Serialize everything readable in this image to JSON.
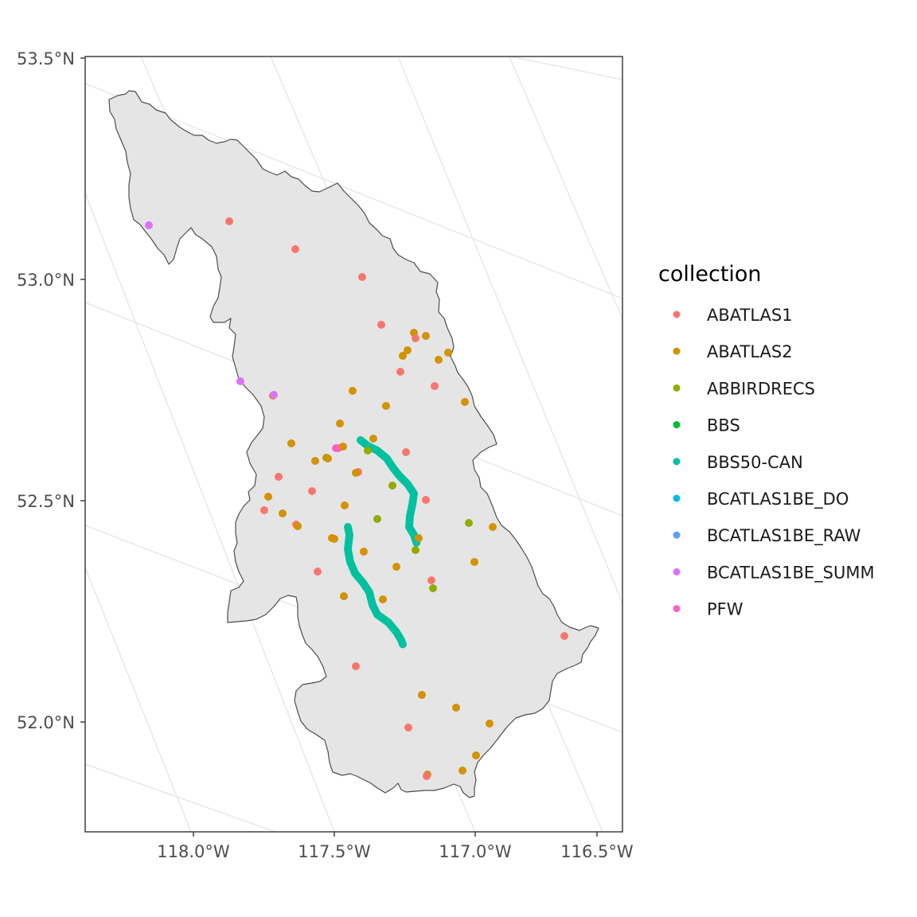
{
  "map": {
    "y_axis_labels": [
      "53.5°N",
      "53.0°N",
      "52.5°N",
      "52.0°N"
    ],
    "x_axis_labels": [
      "118.0°W",
      "117.5°W",
      "117.0°W",
      "116.5°W"
    ],
    "region_fill": "#e5e5e5",
    "region_stroke": "#4d4d4d",
    "graticule_color": "#e6e6e6"
  },
  "legend": {
    "title": "collection",
    "items": [
      {
        "label": "ABATLAS1",
        "color": "#F8766D"
      },
      {
        "label": "ABATLAS2",
        "color": "#D39200"
      },
      {
        "label": "ABBIRDRECS",
        "color": "#93AA00"
      },
      {
        "label": "BBS",
        "color": "#00BA38"
      },
      {
        "label": "BBS50-CAN",
        "color": "#00C19F"
      },
      {
        "label": "BCATLAS1BE_DO",
        "color": "#00B9E3"
      },
      {
        "label": "BCATLAS1BE_RAW",
        "color": "#619CFF"
      },
      {
        "label": "BCATLAS1BE_SUMM",
        "color": "#DB72FB"
      },
      {
        "label": "PFW",
        "color": "#FF61C3"
      }
    ]
  }
}
